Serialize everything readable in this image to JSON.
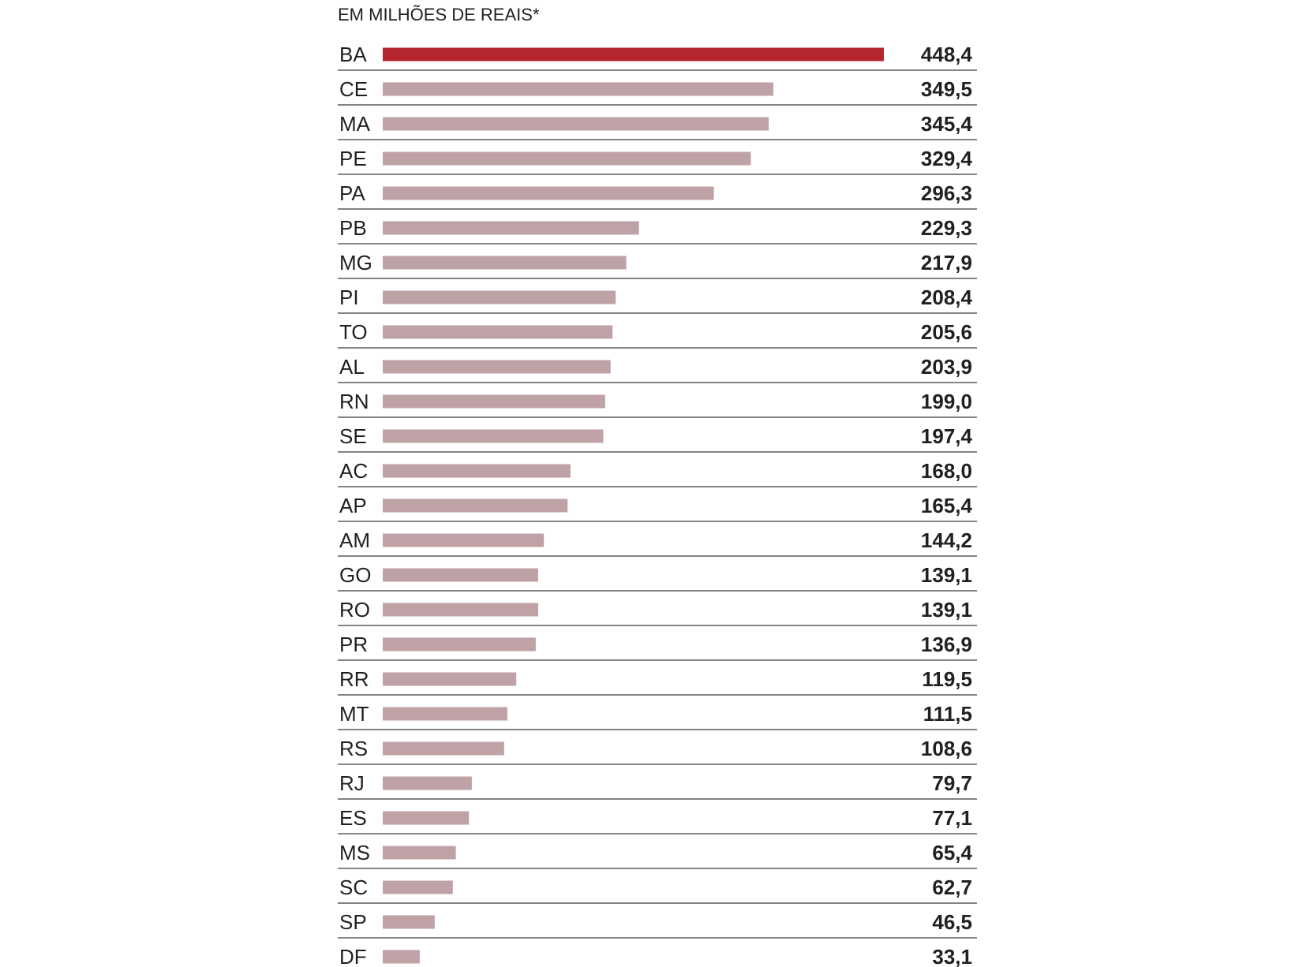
{
  "chart_data": {
    "type": "bar",
    "orientation": "horizontal",
    "subtitle": "EM MILHÕES DE REAIS*",
    "categories": [
      "BA",
      "CE",
      "MA",
      "PE",
      "PA",
      "PB",
      "MG",
      "PI",
      "TO",
      "AL",
      "RN",
      "SE",
      "AC",
      "AP",
      "AM",
      "GO",
      "RO",
      "PR",
      "RR",
      "MT",
      "RS",
      "RJ",
      "ES",
      "MS",
      "SC",
      "SP",
      "DF"
    ],
    "values": [
      448.4,
      349.5,
      345.4,
      329.4,
      296.3,
      229.3,
      217.9,
      208.4,
      205.6,
      203.9,
      199.0,
      197.4,
      168.0,
      165.4,
      144.2,
      139.1,
      139.1,
      136.9,
      119.5,
      111.5,
      108.6,
      79.7,
      77.1,
      65.4,
      62.7,
      46.5,
      33.1
    ],
    "value_labels": [
      "448,4",
      "349,5",
      "345,4",
      "329,4",
      "296,3",
      "229,3",
      "217,9",
      "208,4",
      "205,6",
      "203,9",
      "199,0",
      "197,4",
      "168,0",
      "165,4",
      "144,2",
      "139,1",
      "139,1",
      "136,9",
      "119,5",
      "111,5",
      "108,6",
      "79,7",
      "77,1",
      "65,4",
      "62,7",
      "46,5",
      "33,1"
    ],
    "highlight_index": 0,
    "xlim": [
      0,
      448.4
    ],
    "grid": false,
    "colors": {
      "highlight": "#b5252e",
      "bar": "#bfa2a6",
      "divider": "#3a3a3a",
      "text": "#231f20"
    }
  }
}
